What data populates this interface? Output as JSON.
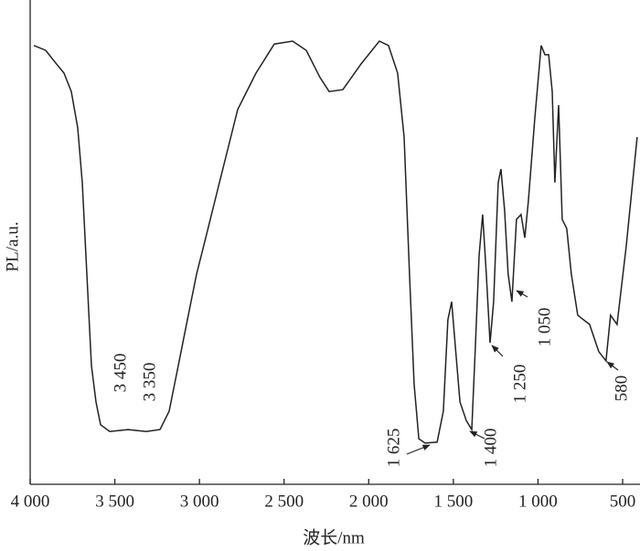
{
  "chart_data": {
    "type": "line",
    "x_label": "波长/nm",
    "y_label": "PL/a.u.",
    "x": [
      3978,
      3908,
      3854,
      3800,
      3757,
      3719,
      3692,
      3665,
      3638,
      3611,
      3584,
      3530,
      3422,
      3314,
      3233,
      3179,
      3125,
      3071,
      3017,
      2963,
      2882,
      2774,
      2666,
      2558,
      2450,
      2369,
      2288,
      2234,
      2153,
      2045,
      1937,
      1883,
      1829,
      1791,
      1759,
      1732,
      1704,
      1667,
      1596,
      1559,
      1532,
      1510,
      1488,
      1461,
      1424,
      1391,
      1370,
      1348,
      1327,
      1305,
      1283,
      1262,
      1235,
      1219,
      1197,
      1176,
      1154,
      1127,
      1100,
      1078,
      1057,
      1019,
      981,
      959,
      937,
      916,
      900,
      878,
      857,
      830,
      803,
      765,
      695,
      641,
      598,
      571,
      533,
      479,
      414
    ],
    "values": [
      90.6,
      89.6,
      87.2,
      84.9,
      81.1,
      73.6,
      62.3,
      43.4,
      24.5,
      17.0,
      12.3,
      10.9,
      11.3,
      10.9,
      11.3,
      15.1,
      24.5,
      34.0,
      43.4,
      50.9,
      62.3,
      77.4,
      84.9,
      90.9,
      91.5,
      89.6,
      84.0,
      81.1,
      81.5,
      86.8,
      91.5,
      90.6,
      84.9,
      71.7,
      43.4,
      20.8,
      9.4,
      8.5,
      8.7,
      15.1,
      34.0,
      37.7,
      28.3,
      17.0,
      13.2,
      11.3,
      28.3,
      47.2,
      55.7,
      43.4,
      29.2,
      37.7,
      62.3,
      65.1,
      56.6,
      43.4,
      37.7,
      54.7,
      55.7,
      50.9,
      58.5,
      75.5,
      90.6,
      88.7,
      88.7,
      81.1,
      62.3,
      78.3,
      54.7,
      52.8,
      43.4,
      34.9,
      33.0,
      27.4,
      25.5,
      34.9,
      33.0,
      49.1,
      71.7
    ],
    "color": "#222222",
    "xlim": [
      4000,
      400
    ],
    "ylim": [
      0,
      100
    ],
    "xticks": [
      {
        "value": 4000,
        "label": "4 000"
      },
      {
        "value": 3500,
        "label": "3 500"
      },
      {
        "value": 3000,
        "label": "3 000"
      },
      {
        "value": 2500,
        "label": "2 500"
      },
      {
        "value": 2000,
        "label": "2 000"
      },
      {
        "value": 1500,
        "label": "1 500"
      },
      {
        "value": 1000,
        "label": "1 000"
      },
      500
    ],
    "annotations": [
      "3 450",
      "3 350",
      "1 625",
      "1 400",
      "1 250",
      "1 050",
      "580"
    ]
  }
}
